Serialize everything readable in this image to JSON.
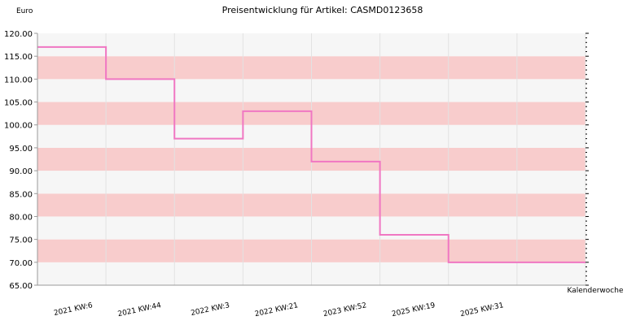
{
  "chart_data": {
    "type": "line",
    "step": true,
    "title": "Preisentwicklung für Artikel: CASMD0123658",
    "ylabel": "Euro",
    "xlabel": "Kalenderwoche",
    "ylim": [
      65,
      120
    ],
    "ytick_step": 5,
    "y_decimals": 2,
    "grid": true,
    "band_colors": [
      "#f6f6f6",
      "#f8cccc"
    ],
    "line_color": "#f077c2",
    "categories": [
      "2021 KW:6",
      "2021 KW:44",
      "2022 KW:3",
      "2022 KW:21",
      "2023 KW:52",
      "2025 KW:19",
      "2025 KW:31"
    ],
    "series": [
      {
        "values": [
          117,
          110,
          97,
          103,
          92,
          76,
          70
        ]
      }
    ]
  }
}
